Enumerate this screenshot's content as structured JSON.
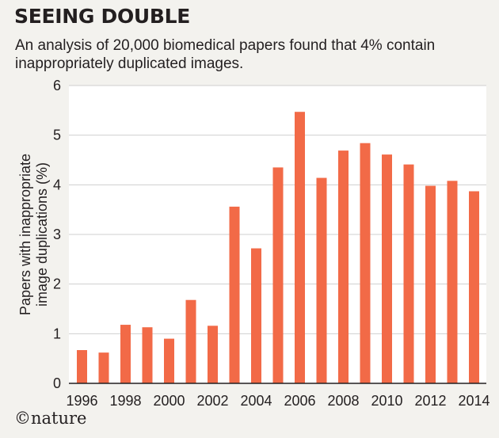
{
  "header": {
    "title": "SEEING DOUBLE",
    "subtitle": "An analysis of 20,000 biomedical papers found that 4% contain inappropriately duplicated images."
  },
  "credit": "©nature",
  "colors": {
    "bar": "#f26a47",
    "grid": "#cfcfcf",
    "plot_bg": "#ffffff",
    "page_bg": "#f3f2ee"
  },
  "chart_data": {
    "type": "bar",
    "title": "SEEING DOUBLE",
    "subtitle": "An analysis of 20,000 biomedical papers found that 4% contain inappropriately duplicated images.",
    "ylabel_lines": [
      "Papers with inappropriate",
      "image duplications (%)"
    ],
    "xlabel": "",
    "ylim": [
      0,
      6
    ],
    "yticks": [
      0,
      1,
      2,
      3,
      4,
      5,
      6
    ],
    "categories": [
      "1996",
      "1997",
      "1998",
      "1999",
      "2000",
      "2001",
      "2002",
      "2003",
      "2004",
      "2005",
      "2006",
      "2007",
      "2008",
      "2009",
      "2010",
      "2011",
      "2012",
      "2013",
      "2014"
    ],
    "xtick_labels": [
      "1996",
      "1998",
      "2000",
      "2002",
      "2004",
      "2006",
      "2008",
      "2010",
      "2012",
      "2014"
    ],
    "values": [
      0.67,
      0.62,
      1.18,
      1.13,
      0.9,
      1.68,
      1.16,
      3.56,
      2.72,
      4.35,
      5.47,
      4.14,
      4.69,
      4.84,
      4.61,
      4.41,
      3.98,
      4.08,
      3.87
    ],
    "grid": true,
    "legend": "none"
  }
}
